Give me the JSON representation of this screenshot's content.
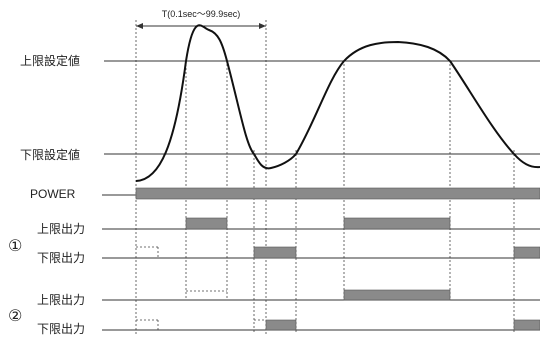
{
  "period_label": "T(0.1sec～99.9sec)",
  "labels": {
    "upper_set": "上限設定値",
    "lower_set": "下限設定値",
    "power": "POWER",
    "upper_out": "上限出力",
    "lower_out": "下限出力",
    "group1": "①",
    "group2": "②"
  },
  "colors": {
    "bar_fill": "#8a8a8a",
    "line": "#333333"
  }
}
